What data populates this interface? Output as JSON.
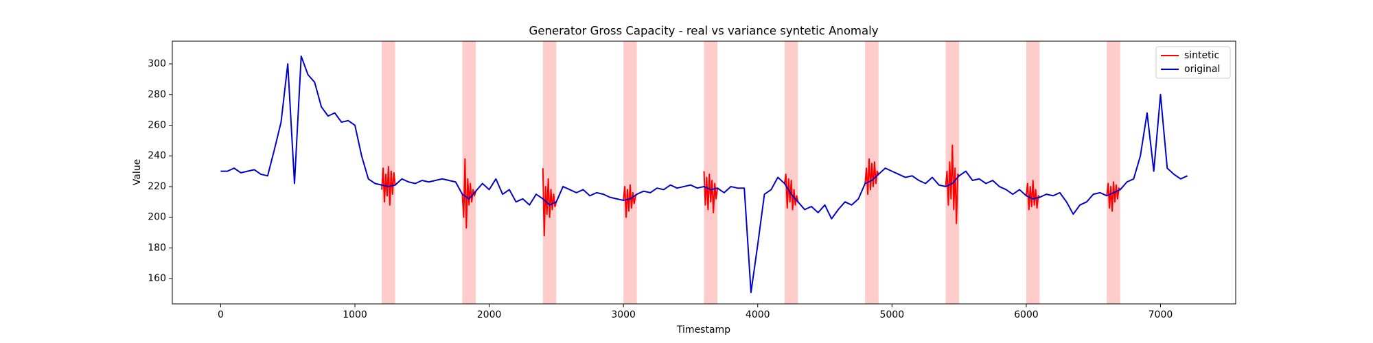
{
  "chart_data": {
    "type": "line",
    "title": "Generator Gross Capacity - real vs variance syntetic Anomaly",
    "x_label": "Timestamp",
    "y_label": "Value",
    "xlim": [
      -360,
      7560
    ],
    "ylim": [
      143.5,
      314.8
    ],
    "xticks": [
      0,
      1000,
      2000,
      3000,
      4000,
      5000,
      6000,
      7000
    ],
    "yticks": [
      160,
      180,
      200,
      220,
      240,
      260,
      280,
      300
    ],
    "legend_position": "upper right",
    "span_color": "#ff0000",
    "anomaly_spans": [
      [
        1200,
        1300
      ],
      [
        1800,
        1900
      ],
      [
        2400,
        2500
      ],
      [
        3000,
        3100
      ],
      [
        3600,
        3700
      ],
      [
        4200,
        4300
      ],
      [
        4800,
        4900
      ],
      [
        5400,
        5500
      ],
      [
        6000,
        6100
      ],
      [
        6600,
        6700
      ]
    ],
    "series": [
      {
        "name": "sintetic",
        "color": "#ff0000",
        "x": [
          1200,
          1210,
          1220,
          1230,
          1240,
          1250,
          1260,
          1270,
          1280,
          1290,
          1300,
          1800,
          1810,
          1820,
          1830,
          1840,
          1850,
          1860,
          1870,
          1880,
          1890,
          1900,
          2400,
          2410,
          2420,
          2430,
          2440,
          2450,
          2460,
          2470,
          2480,
          2490,
          2500,
          3000,
          3010,
          3020,
          3030,
          3040,
          3050,
          3060,
          3070,
          3080,
          3090,
          3100,
          3600,
          3610,
          3620,
          3630,
          3640,
          3650,
          3660,
          3670,
          3680,
          3690,
          3700,
          4200,
          4210,
          4220,
          4230,
          4240,
          4250,
          4260,
          4270,
          4280,
          4290,
          4300,
          4800,
          4810,
          4820,
          4830,
          4840,
          4850,
          4860,
          4870,
          4880,
          4890,
          4900,
          5400,
          5410,
          5420,
          5430,
          5440,
          5450,
          5460,
          5470,
          5480,
          5490,
          5500,
          6000,
          6010,
          6020,
          6030,
          6040,
          6050,
          6060,
          6070,
          6080,
          6090,
          6100,
          6600,
          6610,
          6620,
          6630,
          6640,
          6650,
          6660,
          6670,
          6680,
          6690,
          6700
        ],
        "values": [
          218,
          232,
          210,
          228,
          214,
          233,
          208,
          230,
          215,
          229,
          221,
          215,
          200,
          238,
          193,
          225,
          208,
          222,
          210,
          218,
          214,
          217,
          232,
          188,
          220,
          202,
          225,
          200,
          218,
          205,
          215,
          207,
          210,
          211,
          220,
          200,
          218,
          204,
          221,
          206,
          216,
          209,
          214,
          215,
          230,
          208,
          226,
          205,
          228,
          210,
          224,
          203,
          222,
          212,
          219,
          222,
          228,
          206,
          225,
          210,
          224,
          205,
          218,
          208,
          214,
          210,
          222,
          232,
          215,
          238,
          218,
          235,
          220,
          236,
          222,
          230,
          228,
          220,
          230,
          208,
          236,
          212,
          247,
          205,
          232,
          196,
          228,
          227,
          214,
          222,
          205,
          220,
          207,
          224,
          208,
          218,
          206,
          214,
          213,
          214,
          222,
          206,
          220,
          204,
          223,
          210,
          221,
          212,
          219,
          218
        ]
      },
      {
        "name": "original",
        "color": "#0000cc",
        "x": [
          0,
          50,
          100,
          150,
          200,
          250,
          300,
          350,
          400,
          450,
          500,
          550,
          600,
          650,
          700,
          750,
          800,
          850,
          900,
          950,
          1000,
          1050,
          1100,
          1150,
          1200,
          1250,
          1300,
          1350,
          1400,
          1450,
          1500,
          1550,
          1600,
          1650,
          1700,
          1750,
          1800,
          1850,
          1900,
          1950,
          2000,
          2050,
          2100,
          2150,
          2200,
          2250,
          2300,
          2350,
          2400,
          2450,
          2500,
          2550,
          2600,
          2650,
          2700,
          2750,
          2800,
          2850,
          2900,
          2950,
          3000,
          3050,
          3100,
          3150,
          3200,
          3250,
          3300,
          3350,
          3400,
          3450,
          3500,
          3550,
          3600,
          3650,
          3700,
          3750,
          3800,
          3850,
          3900,
          3950,
          4000,
          4050,
          4100,
          4150,
          4200,
          4250,
          4300,
          4350,
          4400,
          4450,
          4500,
          4550,
          4600,
          4650,
          4700,
          4750,
          4800,
          4850,
          4900,
          4950,
          5000,
          5050,
          5100,
          5150,
          5200,
          5250,
          5300,
          5350,
          5400,
          5450,
          5500,
          5550,
          5600,
          5650,
          5700,
          5750,
          5800,
          5850,
          5900,
          5950,
          6000,
          6050,
          6100,
          6150,
          6200,
          6250,
          6300,
          6350,
          6400,
          6450,
          6500,
          6550,
          6600,
          6650,
          6700,
          6750,
          6800,
          6850,
          6900,
          6950,
          7000,
          7050,
          7100,
          7150,
          7200
        ],
        "values": [
          230,
          230,
          232,
          229,
          230,
          231,
          228,
          227,
          244,
          262,
          300,
          222,
          305,
          293,
          288,
          272,
          266,
          268,
          262,
          263,
          260,
          240,
          225,
          222,
          221,
          220,
          221,
          225,
          223,
          222,
          224,
          223,
          224,
          225,
          224,
          223,
          215,
          212,
          217,
          222,
          218,
          225,
          215,
          218,
          210,
          212,
          208,
          215,
          212,
          208,
          210,
          220,
          218,
          216,
          218,
          214,
          216,
          215,
          213,
          212,
          211,
          212,
          215,
          217,
          216,
          219,
          218,
          221,
          219,
          220,
          221,
          219,
          220,
          218,
          219,
          216,
          220,
          219,
          219,
          151,
          182,
          215,
          218,
          226,
          222,
          215,
          210,
          205,
          207,
          203,
          208,
          199,
          205,
          210,
          208,
          212,
          222,
          224,
          228,
          232,
          230,
          228,
          226,
          227,
          224,
          222,
          226,
          221,
          220,
          222,
          227,
          230,
          224,
          225,
          222,
          224,
          220,
          218,
          215,
          218,
          214,
          212,
          213,
          215,
          214,
          216,
          210,
          202,
          208,
          210,
          215,
          216,
          214,
          216,
          218,
          223,
          225,
          240,
          268,
          230,
          280,
          232,
          228,
          225,
          227
        ]
      }
    ]
  }
}
